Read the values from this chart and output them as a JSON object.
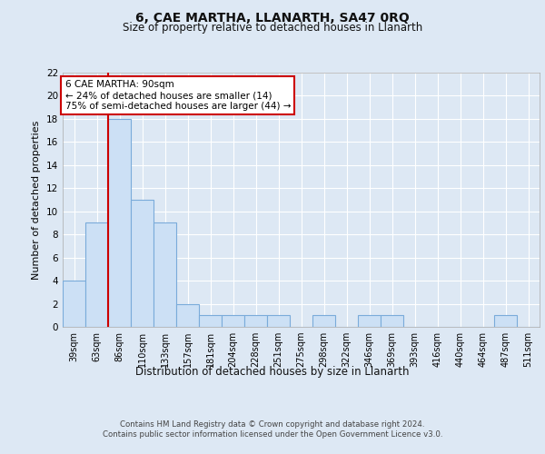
{
  "title": "6, CAE MARTHA, LLANARTH, SA47 0RQ",
  "subtitle": "Size of property relative to detached houses in Llanarth",
  "xlabel": "Distribution of detached houses by size in Llanarth",
  "ylabel": "Number of detached properties",
  "categories": [
    "39sqm",
    "63sqm",
    "86sqm",
    "110sqm",
    "133sqm",
    "157sqm",
    "181sqm",
    "204sqm",
    "228sqm",
    "251sqm",
    "275sqm",
    "298sqm",
    "322sqm",
    "346sqm",
    "369sqm",
    "393sqm",
    "416sqm",
    "440sqm",
    "464sqm",
    "487sqm",
    "511sqm"
  ],
  "values": [
    4,
    9,
    18,
    11,
    9,
    2,
    1,
    1,
    1,
    1,
    0,
    1,
    0,
    1,
    1,
    0,
    0,
    0,
    0,
    1,
    0
  ],
  "bar_color": "#cce0f5",
  "bar_edge_color": "#7aabda",
  "highlight_bar_index": 2,
  "highlight_line_color": "#cc0000",
  "ylim": [
    0,
    22
  ],
  "yticks": [
    0,
    2,
    4,
    6,
    8,
    10,
    12,
    14,
    16,
    18,
    20,
    22
  ],
  "annotation_text": "6 CAE MARTHA: 90sqm\n← 24% of detached houses are smaller (14)\n75% of semi-detached houses are larger (44) →",
  "annotation_box_color": "#ffffff",
  "annotation_box_edge_color": "#cc0000",
  "background_color": "#dde8f4",
  "plot_bg_color": "#dde8f4",
  "grid_color": "#ffffff",
  "footer_line1": "Contains HM Land Registry data © Crown copyright and database right 2024.",
  "footer_line2": "Contains public sector information licensed under the Open Government Licence v3.0."
}
